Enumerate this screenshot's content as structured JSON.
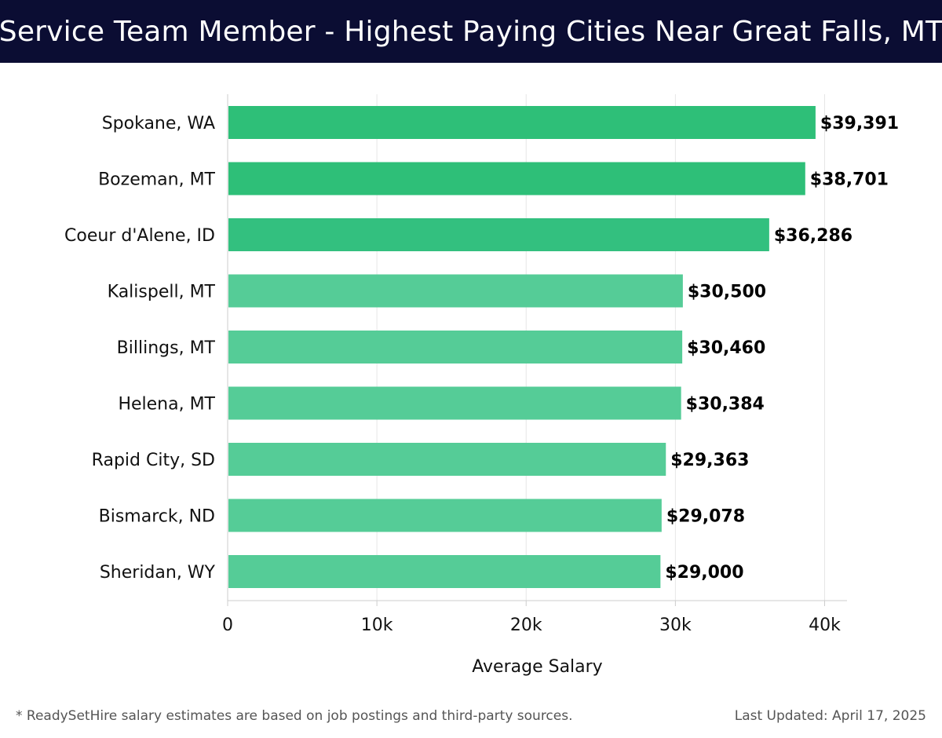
{
  "header": {
    "title": "Service Team Member - Highest Paying Cities Near Great Falls, MT"
  },
  "chart_data": {
    "type": "bar",
    "orientation": "horizontal",
    "categories": [
      "Spokane, WA",
      "Bozeman, MT",
      "Coeur d'Alene, ID",
      "Kalispell, MT",
      "Billings, MT",
      "Helena, MT",
      "Rapid City, SD",
      "Bismarck, ND",
      "Sheridan, WY"
    ],
    "values": [
      39391,
      38701,
      36286,
      30500,
      30460,
      30384,
      29363,
      29078,
      29000
    ],
    "value_labels": [
      "$39,391",
      "$38,701",
      "$36,286",
      "$30,500",
      "$30,460",
      "$30,384",
      "$29,363",
      "$29,078",
      "$29,000"
    ],
    "xlabel": "Average Salary",
    "ylabel": "",
    "xlim": [
      0,
      41500
    ],
    "xticks": [
      0,
      10000,
      20000,
      30000,
      40000
    ],
    "xtick_labels": [
      "0",
      "10k",
      "20k",
      "30k",
      "40k"
    ],
    "grid": true,
    "colors": {
      "high": "#2ebf78",
      "mid": "#33c07f",
      "low": "#55cc97",
      "grid": "#e6e6e6",
      "axis": "#cccccc"
    }
  },
  "footer": {
    "note": "* ReadySetHire salary estimates are based on job postings and third-party sources.",
    "updated": "Last Updated: April 17, 2025"
  }
}
